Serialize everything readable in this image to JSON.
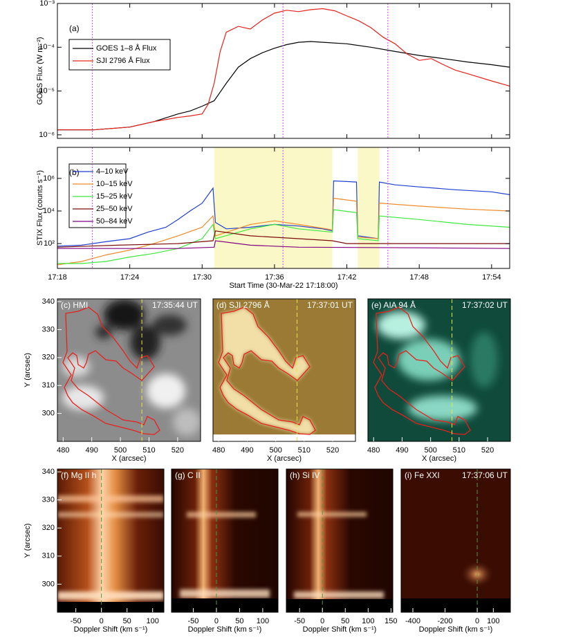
{
  "chart_data": [
    {
      "type": "line",
      "label": "(a)",
      "ylabel": "GOES Flux (W m⁻²)",
      "log_y": true,
      "legend": "upper left",
      "xlim": [
        0,
        37.5
      ],
      "ylim": [
        8.3e-07,
        0.001
      ],
      "yticks": [
        {
          "value": 1e-06,
          "label": "10⁻⁶"
        },
        {
          "value": 1e-05,
          "label": "10⁻⁵"
        },
        {
          "value": 0.0001,
          "label": "10⁻⁴"
        },
        {
          "value": 0.001,
          "label": "10⁻³"
        }
      ],
      "vlines": [
        2.9,
        18.7,
        27.4
      ],
      "series": [
        {
          "name": "GOES 1–8 Å Flux",
          "color": "#000000",
          "x": [
            0,
            3,
            6,
            8,
            10,
            11,
            12,
            13,
            14,
            15,
            16,
            17,
            18,
            19,
            20,
            21,
            22,
            24,
            26,
            28,
            30,
            32,
            34,
            36,
            37.5
          ],
          "values": [
            1.3e-06,
            1.3e-06,
            1.5e-06,
            2e-06,
            3e-06,
            3.5e-06,
            4.5e-06,
            6e-06,
            1.5e-05,
            3.5e-05,
            5.5e-05,
            7.5e-05,
            9.5e-05,
            0.000115,
            0.00013,
            0.000135,
            0.00013,
            0.00012,
            0.0001,
            8e-05,
            6.5e-05,
            5.5e-05,
            4.6e-05,
            4e-05,
            3.5e-05
          ]
        },
        {
          "name": "SJI 2796 Å Flux",
          "color": "#e8201a",
          "x": [
            0,
            3,
            6,
            8,
            10,
            11,
            12,
            12.5,
            13,
            13.5,
            14,
            15,
            16,
            17,
            18,
            19,
            20,
            21,
            22,
            23,
            24,
            25,
            26,
            27,
            28,
            29,
            30,
            31,
            32,
            33,
            34,
            36,
            37.5
          ],
          "values": [
            1.3e-06,
            1.3e-06,
            1.5e-06,
            2e-06,
            2.5e-06,
            2.7e-06,
            3e-06,
            5e-06,
            1.5e-05,
            8e-05,
            0.00022,
            0.0003,
            0.00026,
            0.00042,
            0.0006,
            0.0007,
            0.00065,
            0.00072,
            0.00076,
            0.00068,
            0.00052,
            0.0004,
            0.00028,
            0.00017,
            0.00012,
            7e-05,
            5e-05,
            5.5e-05,
            4e-05,
            3e-05,
            2.5e-05,
            1.7e-05,
            1.3e-05
          ]
        }
      ]
    },
    {
      "type": "line",
      "label": "(b)",
      "ylabel": "STIX Flux (counts s⁻¹)",
      "xlabel": "Start Time (30-Mar-22 17:18:00)",
      "log_y": true,
      "legend": "upper left",
      "xlim": [
        0,
        37.5
      ],
      "ylim": [
        3,
        80000000.0
      ],
      "xticks": [
        {
          "value": 0,
          "label": "17:18"
        },
        {
          "value": 6,
          "label": "17:24"
        },
        {
          "value": 12,
          "label": "17:30"
        },
        {
          "value": 18,
          "label": "17:36"
        },
        {
          "value": 24,
          "label": "17:42"
        },
        {
          "value": 30,
          "label": "17:48"
        },
        {
          "value": 36,
          "label": "17:54"
        }
      ],
      "yticks": [
        {
          "value": 100,
          "label": "10²"
        },
        {
          "value": 10000,
          "label": "10⁴"
        },
        {
          "value": 1000000,
          "label": "10⁶"
        }
      ],
      "vlines": [
        2.9,
        18.7,
        27.4
      ],
      "shaded": [
        [
          13.0,
          22.8
        ],
        [
          24.9,
          26.7
        ]
      ],
      "series": [
        {
          "name": "4–10 keV",
          "color": "#1f3fd0",
          "x": [
            0,
            2,
            4,
            6,
            7.5,
            9,
            10,
            11,
            12,
            12.9,
            13.1,
            14,
            16,
            18,
            20,
            22,
            22.8,
            22.9,
            24.8,
            24.9,
            26.6,
            26.7,
            28,
            30,
            33,
            36,
            37.5
          ],
          "values": [
            70,
            80,
            130,
            200,
            500,
            1000,
            3000,
            10000,
            30000,
            250000,
            2000,
            800,
            1000,
            1500,
            1200,
            800,
            600,
            700000,
            600000,
            300,
            200,
            600000,
            400000,
            300000,
            200000,
            150000,
            100000
          ]
        },
        {
          "name": "10–15 keV",
          "color": "#f08a2a",
          "x": [
            0,
            2,
            4,
            6,
            8,
            10,
            12,
            12.9,
            13.1,
            16,
            18,
            20,
            22.8,
            22.9,
            24.8,
            24.9,
            26.6,
            26.7,
            30,
            34,
            37.5
          ],
          "values": [
            5,
            8,
            20,
            40,
            100,
            300,
            1000,
            5000,
            300,
            1500,
            2500,
            1500,
            700,
            60000,
            40000,
            250,
            200,
            30000,
            20000,
            13000,
            10000
          ]
        },
        {
          "name": "15–25 keV",
          "color": "#3ee83e",
          "x": [
            0,
            2,
            4,
            6,
            8,
            10,
            12,
            12.9,
            13.1,
            16,
            18,
            20,
            22.8,
            22.9,
            24.8,
            24.9,
            26.6,
            26.7,
            30,
            34,
            37.5
          ],
          "values": [
            6,
            6,
            8,
            15,
            25,
            50,
            200,
            1500,
            200,
            800,
            1500,
            800,
            500,
            12000,
            8000,
            200,
            150,
            5000,
            3000,
            1500,
            1000
          ]
        },
        {
          "name": "25–50 keV",
          "color": "#7a0a0a",
          "x": [
            0,
            5,
            10,
            12.9,
            13.1,
            16,
            20,
            22.8,
            24,
            30,
            37.5
          ],
          "values": [
            60,
            80,
            100,
            150,
            600,
            300,
            200,
            150,
            100,
            100,
            100
          ]
        },
        {
          "name": "50–84 keV",
          "color": "#800080",
          "x": [
            0,
            10,
            13,
            13.1,
            16,
            20,
            30,
            37.5
          ],
          "values": [
            50,
            50,
            60,
            150,
            80,
            60,
            55,
            50
          ]
        }
      ]
    },
    {
      "type": "image",
      "label": "(c) HMI",
      "time": "17:35:44 UT",
      "xlabel": "X (arcsec)",
      "ylabel": "Y (arcsec)",
      "xlim": [
        478,
        528
      ],
      "ylim": [
        290,
        341
      ],
      "xticks": [
        480,
        490,
        500,
        510,
        520
      ],
      "yticks": [
        300,
        310,
        320,
        330,
        340
      ],
      "marker_x": 507.5,
      "marker_color": "#e8e840"
    },
    {
      "type": "image",
      "label": "(d) SJI 2796 Å",
      "time": "17:37:01 UT",
      "xlabel": "X (arcsec)",
      "xlim": [
        478,
        528
      ],
      "ylim": [
        290,
        341
      ],
      "xticks": [
        480,
        490,
        500,
        510,
        520
      ],
      "marker_x": 507.5,
      "marker_color": "#e8e840"
    },
    {
      "type": "image",
      "label": "(e) AIA 94 Å",
      "time": "17:37:02 UT",
      "xlabel": "X (arcsec)",
      "xlim": [
        478,
        528
      ],
      "ylim": [
        290,
        341
      ],
      "xticks": [
        480,
        490,
        500,
        510,
        520
      ],
      "marker_x": 507.5,
      "marker_color": "#e8e840"
    },
    {
      "type": "image",
      "label": "(f) Mg II h",
      "xlabel": "Doppler Shift (km s⁻¹)",
      "ylabel": "Y (arcsec)",
      "xlim": [
        -86,
        122
      ],
      "ylim": [
        290,
        341
      ],
      "xticks": [
        -50,
        0,
        50,
        100
      ],
      "yticks": [
        300,
        310,
        320,
        330,
        340
      ],
      "marker_x": 0,
      "marker_color": "#4a9a3a"
    },
    {
      "type": "image",
      "label": "(g) C II",
      "xlabel": "Doppler Shift (km s⁻¹)",
      "xlim": [
        -97,
        133
      ],
      "ylim": [
        290,
        341
      ],
      "xticks": [
        -50,
        0,
        50,
        100
      ],
      "marker_x": 0,
      "marker_color": "#4a9a3a"
    },
    {
      "type": "image",
      "label": "(h) Si IV",
      "xlabel": "Doppler Shift (km s⁻¹)",
      "xlim": [
        -79,
        154
      ],
      "ylim": [
        290,
        341
      ],
      "xticks": [
        -50,
        0,
        50,
        100,
        150
      ],
      "marker_x": 0,
      "marker_color": "#4a9a3a"
    },
    {
      "type": "image",
      "label": "(i) Fe XXI",
      "time": "17:37:06 UT",
      "xlabel": "Doppler Shift (km s⁻¹)",
      "xlim": [
        -473,
        206
      ],
      "ylim": [
        290,
        341
      ],
      "xticks": [
        -400,
        -200,
        0,
        100
      ],
      "marker_x": 0,
      "marker_color": "#4a9a3a"
    }
  ]
}
